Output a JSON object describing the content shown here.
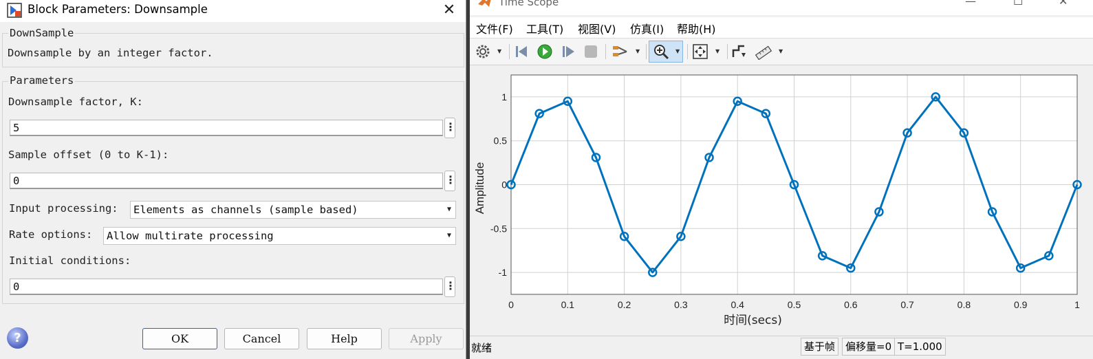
{
  "dialog": {
    "title": "Block Parameters: Downsample",
    "block_group": {
      "label": "DownSample",
      "description": "Downsample by an integer factor."
    },
    "params_group": {
      "label": "Parameters"
    },
    "fields": {
      "factor": {
        "label": "Downsample factor, K:",
        "value": "5"
      },
      "offset": {
        "label": "Sample offset (0 to K-1):",
        "value": "0"
      },
      "input_processing": {
        "label": "Input processing:",
        "value": "Elements as channels (sample based)"
      },
      "rate_options": {
        "label": "Rate options:",
        "value": "Allow multirate processing"
      },
      "initial_conditions": {
        "label": "Initial conditions:",
        "value": "0"
      }
    },
    "buttons": {
      "ok": "OK",
      "cancel": "Cancel",
      "help": "Help",
      "apply": "Apply"
    },
    "help_glyph": "?",
    "close_glyph": "✕",
    "kebab_glyph": "⋮",
    "dropdown_glyph": "▼"
  },
  "scope": {
    "title": "Time Scope",
    "menu": [
      "文件(F)",
      "工具(T)",
      "视图(V)",
      "仿真(I)",
      "帮助(H)"
    ],
    "toolbar_icons": [
      "gear-icon",
      "step-back-icon",
      "run-icon",
      "step-forward-icon",
      "stop-icon",
      "signal-select-icon",
      "zoom-in-icon",
      "fit-to-view-icon",
      "triggers-icon",
      "measurements-icon"
    ],
    "status": {
      "ready": "就绪",
      "frame_based": "基于帧",
      "offset": "偏移量=0",
      "time": "T=1.000"
    },
    "line_color": "#0072BD"
  },
  "chart_data": {
    "type": "line",
    "title": "",
    "xlabel": "时间(secs)",
    "ylabel": "Amplitude",
    "xlim": [
      0,
      1
    ],
    "ylim": [
      -1.25,
      1.25
    ],
    "grid": true,
    "markers": "circle",
    "x_ticks": [
      "0",
      "0.1",
      "0.2",
      "0.3",
      "0.4",
      "0.5",
      "0.6",
      "0.7",
      "0.8",
      "0.9",
      "1"
    ],
    "x_tick_values": [
      0,
      0.1,
      0.2,
      0.3,
      0.4,
      0.5,
      0.6,
      0.7,
      0.8,
      0.9,
      1
    ],
    "y_ticks": [
      "1",
      "0.5",
      "0",
      "-0.5",
      "-1"
    ],
    "y_tick_values": [
      1,
      0.5,
      0,
      -0.5,
      -1
    ],
    "series": [
      {
        "x": [
          0,
          0.05,
          0.1,
          0.15,
          0.2,
          0.25,
          0.3,
          0.35,
          0.4,
          0.45,
          0.5,
          0.55,
          0.6,
          0.65,
          0.7,
          0.75,
          0.8,
          0.85,
          0.9,
          0.95,
          1.0
        ],
        "values": [
          0,
          0.81,
          0.95,
          0.31,
          -0.59,
          -1.0,
          -0.59,
          0.31,
          0.95,
          0.81,
          0,
          -0.81,
          -0.95,
          -0.31,
          0.59,
          1.0,
          0.59,
          -0.31,
          -0.95,
          -0.81,
          0
        ]
      }
    ]
  }
}
